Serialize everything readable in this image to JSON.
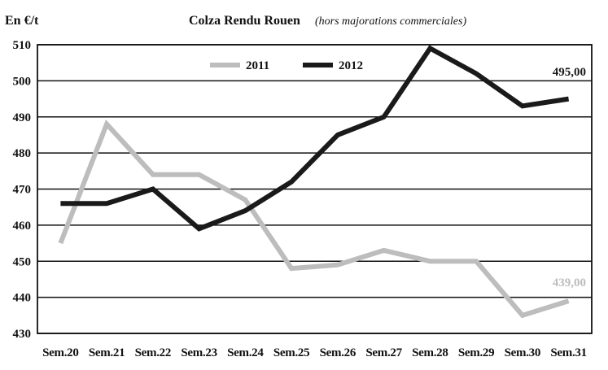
{
  "chart_data": {
    "type": "line",
    "unit_label": "En €/t",
    "title": "Colza Rendu Rouen",
    "subtitle": "(hors majorations commerciales)",
    "categories": [
      "Sem.20",
      "Sem.21",
      "Sem.22",
      "Sem.23",
      "Sem.24",
      "Sem.25",
      "Sem.26",
      "Sem.27",
      "Sem.28",
      "Sem.29",
      "Sem.30",
      "Sem.31"
    ],
    "y_ticks": [
      "510",
      "500",
      "490",
      "480",
      "470",
      "460",
      "450",
      "440",
      "430"
    ],
    "ylim": [
      430,
      510
    ],
    "grid": true,
    "legend_position": "top-center",
    "series": [
      {
        "name": "2011",
        "color": "#bdbdbd",
        "values": [
          455,
          488,
          474,
          474,
          467,
          448,
          449,
          453,
          450,
          450,
          435,
          439
        ],
        "end_label": "439,00"
      },
      {
        "name": "2012",
        "color": "#1a1a1a",
        "values": [
          466,
          466,
          470,
          459,
          464,
          472,
          485,
          490,
          509,
          502,
          493,
          495
        ],
        "end_label": "495,00"
      }
    ]
  }
}
